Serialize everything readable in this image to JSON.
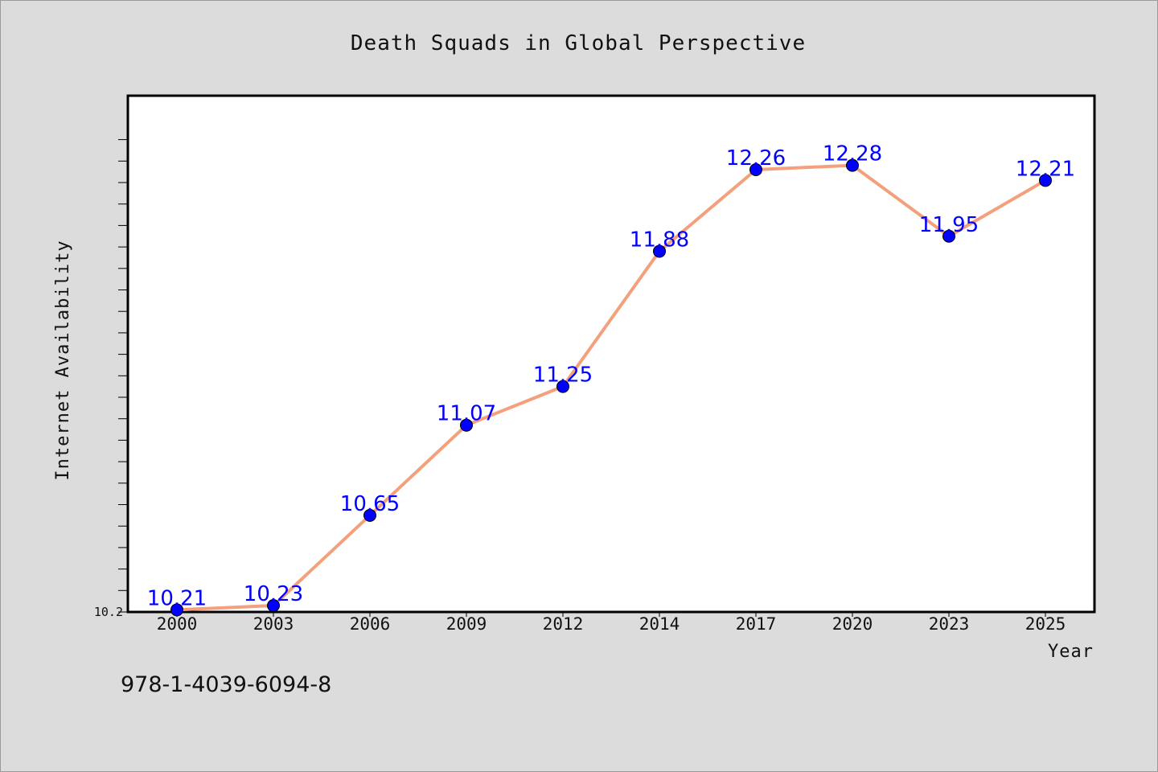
{
  "chart_data": {
    "type": "line",
    "title": "Death Squads in Global Perspective",
    "xlabel": "Year",
    "ylabel": "Internet Availability",
    "categories": [
      "2000",
      "2003",
      "2006",
      "2009",
      "2012",
      "2014",
      "2017",
      "2020",
      "2023",
      "2025"
    ],
    "series": [
      {
        "values": [
          10.21,
          10.23,
          10.65,
          11.07,
          11.25,
          11.88,
          12.26,
          12.28,
          11.95,
          12.21
        ]
      }
    ],
    "ylim": [
      10.2,
      12.4
    ],
    "y_tick_labels": [
      "10.2"
    ],
    "grid": false,
    "colors": {
      "line": "#f4a07c",
      "marker": "#0000ff",
      "label": "#0000ff",
      "background": "#dcdcdc",
      "plot_background": "#ffffff"
    }
  },
  "footer": {
    "isbn": "978-1-4039-6094-8"
  }
}
